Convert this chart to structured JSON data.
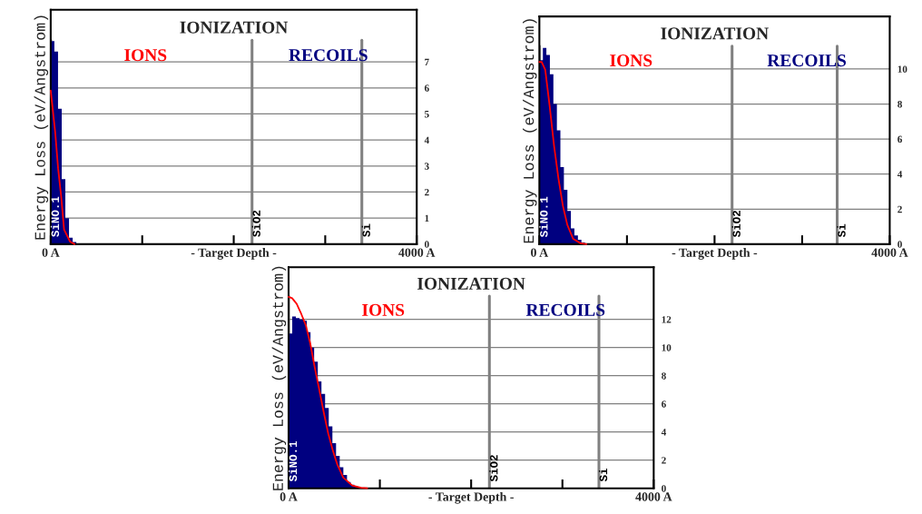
{
  "chart_data": [
    {
      "type": "histogram",
      "title": "IONIZATION",
      "xlabel": "- Target Depth -",
      "ylabel": "Energy Loss (eV/Angstrom)",
      "xlim": [
        0,
        4000
      ],
      "xticks": [
        {
          "value": 0,
          "label": "0 A"
        },
        {
          "value": 1000,
          "label": null
        },
        {
          "value": 2000,
          "label": null
        },
        {
          "value": 3000,
          "label": null
        },
        {
          "value": 4000,
          "label": "4000 A"
        }
      ],
      "ylim": [
        0,
        9
      ],
      "yticks": [
        0,
        1,
        2,
        3,
        4,
        5,
        6,
        7
      ],
      "grid": "y",
      "bins": [
        0,
        40,
        80,
        120,
        160,
        200,
        240,
        280,
        320
      ],
      "series": [
        {
          "name": "RECOILS",
          "color": "#000080",
          "values": [
            7.8,
            7.4,
            5.2,
            2.5,
            1.0,
            0.25,
            0.08,
            0.02
          ]
        },
        {
          "name": "IONS",
          "type": "line",
          "color": "#ff0000",
          "x": [
            0,
            49,
            81,
            114,
            146,
            211,
            260
          ],
          "values": [
            5.9,
            4.3,
            2.9,
            1.85,
            0.56,
            0.1,
            0
          ]
        }
      ],
      "ref_lines": [
        {
          "axis": "x",
          "value": 0,
          "label": "SiNO.1",
          "color": "#808080"
        },
        {
          "axis": "x",
          "value": 2200,
          "label": "SiO2",
          "color": "#808080"
        },
        {
          "axis": "x",
          "value": 3400,
          "label": "Si",
          "color": "#808080"
        }
      ]
    },
    {
      "type": "histogram",
      "title": "IONIZATION",
      "xlabel": "- Target Depth -",
      "ylabel": "Energy Loss (eV/Angstrom)",
      "xlim": [
        0,
        4000
      ],
      "xticks": [
        {
          "value": 0,
          "label": "0 A"
        },
        {
          "value": 1000,
          "label": null
        },
        {
          "value": 2000,
          "label": null
        },
        {
          "value": 3000,
          "label": null
        },
        {
          "value": 4000,
          "label": "4000 A"
        }
      ],
      "ylim": [
        0,
        13
      ],
      "yticks": [
        0,
        2,
        4,
        6,
        8,
        10
      ],
      "grid": "y",
      "bins": [
        0,
        40,
        80,
        120,
        160,
        200,
        240,
        280,
        320,
        360,
        400,
        440,
        480,
        520,
        560,
        600
      ],
      "series": [
        {
          "name": "RECOILS",
          "color": "#000080",
          "values": [
            10.5,
            11.2,
            10.8,
            9.7,
            8.0,
            6.5,
            4.4,
            3.1,
            1.9,
            0.9,
            0.5,
            0.25,
            0.1,
            0.05,
            0.02
          ]
        },
        {
          "name": "IONS",
          "type": "line",
          "color": "#ff0000",
          "x": [
            0,
            27,
            67,
            117,
            168,
            218,
            268,
            319,
            386,
            470,
            537
          ],
          "values": [
            10.4,
            10.4,
            9.95,
            7.9,
            5.6,
            3.75,
            2.2,
            1.1,
            0.3,
            0.05,
            0
          ]
        }
      ],
      "ref_lines": [
        {
          "axis": "x",
          "value": 0,
          "label": "SiNO.1",
          "color": "#808080"
        },
        {
          "axis": "x",
          "value": 2200,
          "label": "SiO2",
          "color": "#808080"
        },
        {
          "axis": "x",
          "value": 3400,
          "label": "Si",
          "color": "#808080"
        }
      ]
    },
    {
      "type": "histogram",
      "title": "IONIZATION",
      "xlabel": "- Target Depth -",
      "ylabel": "Energy Loss (eV/Angstrom)",
      "xlim": [
        0,
        4000
      ],
      "xticks": [
        {
          "value": 0,
          "label": "0 A"
        },
        {
          "value": 1000,
          "label": null
        },
        {
          "value": 2000,
          "label": null
        },
        {
          "value": 3000,
          "label": null
        },
        {
          "value": 4000,
          "label": "4000 A"
        }
      ],
      "ylim": [
        0,
        15.7
      ],
      "yticks": [
        0,
        2,
        4,
        6,
        8,
        10,
        12
      ],
      "grid": "y",
      "bins": [
        0,
        40,
        80,
        120,
        160,
        200,
        240,
        280,
        320,
        360,
        400,
        440,
        480,
        520,
        560,
        600,
        640,
        680,
        720,
        760,
        800,
        840
      ],
      "series": [
        {
          "name": "RECOILS",
          "color": "#000080",
          "values": [
            11.0,
            12.2,
            12.1,
            12.0,
            11.9,
            11.1,
            10.0,
            9.0,
            7.6,
            6.7,
            5.7,
            4.4,
            3.2,
            2.3,
            1.5,
            0.95,
            0.45,
            0.25,
            0.12,
            0.05,
            0.02
          ]
        },
        {
          "name": "IONS",
          "type": "line",
          "color": "#ff0000",
          "x": [
            0,
            39,
            89,
            138,
            188,
            237,
            286,
            336,
            385,
            434,
            484,
            533,
            599,
            697,
            796,
            862
          ],
          "values": [
            13.6,
            13.5,
            13.1,
            12.4,
            11.6,
            10.3,
            8.6,
            7.0,
            5.4,
            3.9,
            2.7,
            1.7,
            0.76,
            0.2,
            0.04,
            0
          ]
        }
      ],
      "ref_lines": [
        {
          "axis": "x",
          "value": 0,
          "label": "SiNO.1",
          "color": "#808080"
        },
        {
          "axis": "x",
          "value": 2200,
          "label": "SiO2",
          "color": "#808080"
        },
        {
          "axis": "x",
          "value": 3400,
          "label": "Si",
          "color": "#808080"
        }
      ]
    }
  ]
}
